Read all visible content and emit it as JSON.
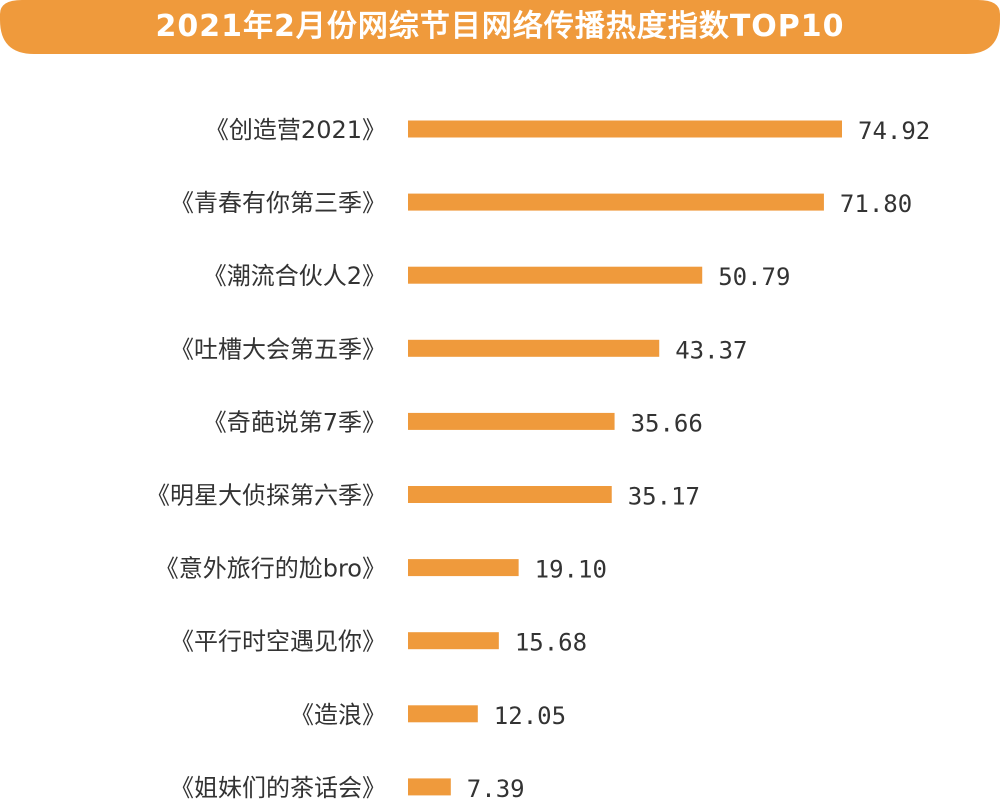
{
  "colors": {
    "accent": "#ef9a3c",
    "header": "#ef9a3c",
    "text": "#333333"
  },
  "chart_data": {
    "type": "bar",
    "orientation": "horizontal",
    "title": "2021年2月份网综节目网络传播热度指数TOP10",
    "categories": [
      "《创造营2021》",
      "《青春有你第三季》",
      "《潮流合伙人2》",
      "《吐槽大会第五季》",
      "《奇葩说第7季》",
      "《明星大侦探第六季》",
      "《意外旅行的尬bro》",
      "《平行时空遇见你》",
      "《造浪》",
      "《姐妹们的茶话会》"
    ],
    "values": [
      74.92,
      71.8,
      50.79,
      43.37,
      35.66,
      35.17,
      19.1,
      15.68,
      12.05,
      7.39
    ],
    "value_labels": [
      "74.92",
      "71.80",
      "50.79",
      "43.37",
      "35.66",
      "35.17",
      "19.10",
      "15.68",
      "12.05",
      "7.39"
    ],
    "xlabel": "",
    "ylabel": "",
    "xlim": [
      0,
      74.92
    ],
    "grid": false,
    "legend": "none"
  }
}
